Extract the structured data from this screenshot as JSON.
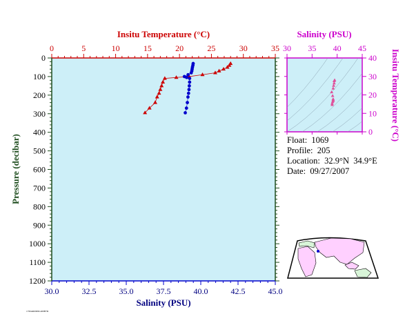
{
  "colors": {
    "temperature": "#cc0000",
    "salinity": "#0000cc",
    "pressure_axis": "#1e4d1e",
    "ts_axis": "#cc00cc",
    "ts_points": "#e0509a",
    "plot_bg": "#cdeff8",
    "land": "#ffd0ff",
    "land_alt": "#d8f5d8",
    "marker": "#0000cc"
  },
  "chart_data": [
    {
      "type": "line",
      "name": "profile",
      "top_axis": {
        "label": "Insitu Temperature (°C)",
        "range": [
          0,
          35
        ],
        "ticks": [
          "0",
          "5",
          "10",
          "15",
          "20",
          "25",
          "30",
          "35"
        ]
      },
      "bottom_axis": {
        "label": "Salinity (PSU)",
        "range": [
          30,
          45
        ],
        "ticks": [
          "30.0",
          "32.5",
          "35.0",
          "37.5",
          "40.0",
          "42.5",
          "45.0"
        ]
      },
      "y_axis": {
        "label": "Pressure (decibar)",
        "range": [
          0,
          1200
        ],
        "inverted": true,
        "ticks": [
          "0",
          "100",
          "200",
          "300",
          "400",
          "500",
          "600",
          "700",
          "800",
          "900",
          "1000",
          "1100",
          "1200"
        ]
      },
      "series": [
        {
          "variable": "temperature",
          "marker": "triangle",
          "points": [
            {
              "x": 28.0,
              "y": 30
            },
            {
              "x": 27.8,
              "y": 40
            },
            {
              "x": 27.5,
              "y": 50
            },
            {
              "x": 26.9,
              "y": 60
            },
            {
              "x": 26.2,
              "y": 70
            },
            {
              "x": 25.6,
              "y": 80
            },
            {
              "x": 23.6,
              "y": 90
            },
            {
              "x": 21.5,
              "y": 100
            },
            {
              "x": 19.5,
              "y": 105
            },
            {
              "x": 17.7,
              "y": 110
            },
            {
              "x": 17.4,
              "y": 130
            },
            {
              "x": 17.2,
              "y": 150
            },
            {
              "x": 17.0,
              "y": 170
            },
            {
              "x": 16.8,
              "y": 190
            },
            {
              "x": 16.5,
              "y": 210
            },
            {
              "x": 16.2,
              "y": 240
            },
            {
              "x": 15.3,
              "y": 270
            },
            {
              "x": 14.6,
              "y": 295
            }
          ]
        },
        {
          "variable": "salinity",
          "marker": "circle",
          "points": [
            {
              "x": 39.49,
              "y": 30
            },
            {
              "x": 39.47,
              "y": 40
            },
            {
              "x": 39.44,
              "y": 50
            },
            {
              "x": 39.42,
              "y": 60
            },
            {
              "x": 39.4,
              "y": 70
            },
            {
              "x": 39.36,
              "y": 80
            },
            {
              "x": 39.15,
              "y": 90
            },
            {
              "x": 38.9,
              "y": 100
            },
            {
              "x": 39.05,
              "y": 105
            },
            {
              "x": 39.25,
              "y": 110
            },
            {
              "x": 39.25,
              "y": 130
            },
            {
              "x": 39.23,
              "y": 150
            },
            {
              "x": 39.21,
              "y": 170
            },
            {
              "x": 39.18,
              "y": 190
            },
            {
              "x": 39.14,
              "y": 210
            },
            {
              "x": 39.1,
              "y": 240
            },
            {
              "x": 39.04,
              "y": 270
            },
            {
              "x": 38.96,
              "y": 295
            }
          ]
        }
      ]
    },
    {
      "type": "scatter",
      "name": "ts_diagram",
      "x_axis": {
        "label": "Salinity (PSU)",
        "range": [
          30,
          45
        ],
        "ticks": [
          "30",
          "35",
          "40",
          "45"
        ]
      },
      "y_axis": {
        "label": "Insitu Temperature (°C)",
        "range": [
          0,
          40
        ],
        "ticks": [
          "0",
          "10",
          "20",
          "30",
          "40"
        ]
      },
      "points": [
        {
          "x": 39.5,
          "y": 28.0
        },
        {
          "x": 39.4,
          "y": 27.5
        },
        {
          "x": 39.4,
          "y": 26.3
        },
        {
          "x": 39.3,
          "y": 25.0
        },
        {
          "x": 39.2,
          "y": 23.5
        },
        {
          "x": 38.9,
          "y": 21.5
        },
        {
          "x": 39.1,
          "y": 19.5
        },
        {
          "x": 39.2,
          "y": 17.7
        },
        {
          "x": 39.2,
          "y": 17.2
        },
        {
          "x": 39.2,
          "y": 16.8
        },
        {
          "x": 39.1,
          "y": 16.2
        },
        {
          "x": 39.0,
          "y": 15.3
        },
        {
          "x": 39.0,
          "y": 14.6
        }
      ]
    }
  ],
  "info": {
    "float": "Float:  1069",
    "profile": "Profile:  205",
    "location": "Location:  32.9°N  34.9°E",
    "date": "Date:  09/27/2007"
  },
  "footnote": "17MAR0MM-400B7R",
  "map": {
    "marker_lat": 32.9,
    "marker_lon": 34.9
  }
}
